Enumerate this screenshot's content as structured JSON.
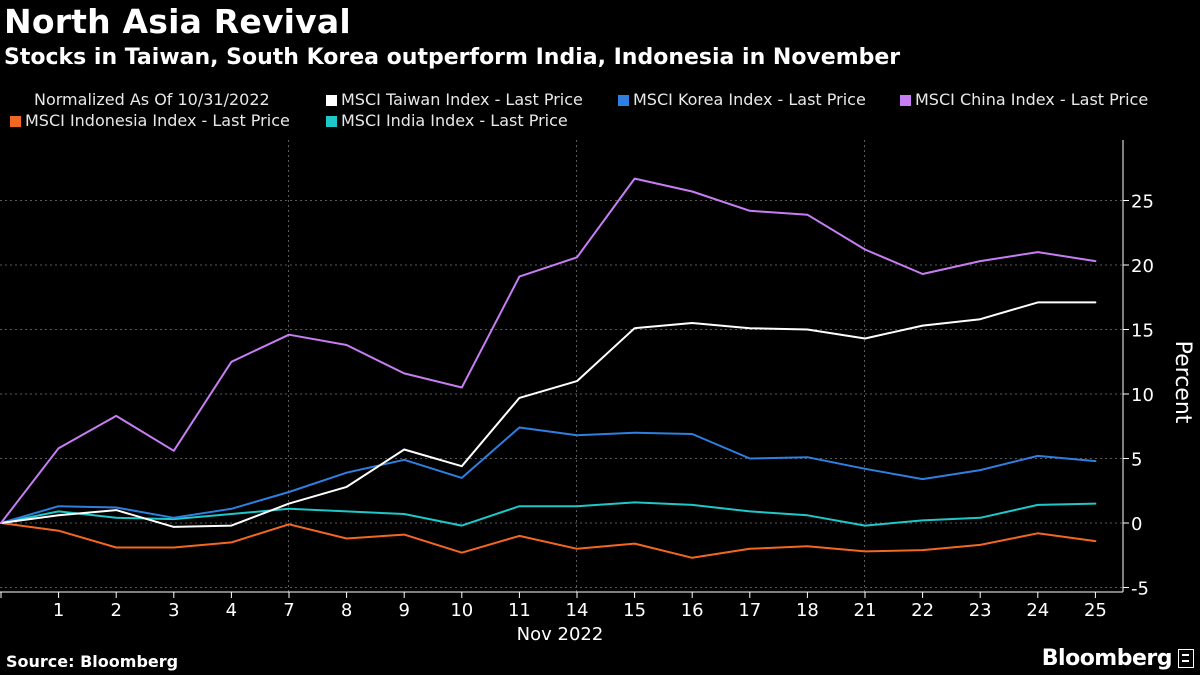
{
  "header": {
    "title": "North Asia Revival",
    "subtitle": "Stocks in Taiwan, South Korea outperform India, Indonesia in November"
  },
  "legend": {
    "note": "Normalized As Of 10/31/2022"
  },
  "footer": {
    "source": "Source: Bloomberg",
    "brand": "Bloomberg"
  },
  "chart_data": {
    "type": "line",
    "title": "North Asia Revival",
    "subtitle": "Stocks in Taiwan, South Korea outperform India, Indonesia in November",
    "x": [
      "",
      "1",
      "2",
      "3",
      "4",
      "7",
      "8",
      "9",
      "10",
      "11",
      "14",
      "15",
      "16",
      "17",
      "18",
      "21",
      "22",
      "23",
      "24",
      "25"
    ],
    "x_tick_labels": [
      "1",
      "2",
      "3",
      "4",
      "7",
      "8",
      "9",
      "10",
      "11",
      "14",
      "15",
      "16",
      "17",
      "18",
      "21",
      "22",
      "23",
      "24",
      "25"
    ],
    "xlabel": "Nov 2022",
    "ylabel": "Percent",
    "ylim": [
      -5.5,
      29
    ],
    "y_ticks": [
      -5,
      0,
      5,
      10,
      15,
      20,
      25
    ],
    "y_axis_side": "right",
    "grid": true,
    "legend_position": "top",
    "series": [
      {
        "name": "MSCI Taiwan Index - Last Price",
        "color": "#ffffff",
        "values": [
          0,
          0.6,
          1.0,
          -0.3,
          -0.2,
          1.5,
          2.8,
          5.7,
          4.4,
          9.7,
          11.0,
          15.1,
          15.5,
          15.1,
          15.0,
          14.3,
          15.3,
          15.8,
          17.1,
          17.1
        ]
      },
      {
        "name": "MSCI Korea Index - Last Price",
        "color": "#2f7fe0",
        "values": [
          0,
          1.3,
          1.2,
          0.4,
          1.1,
          2.4,
          3.9,
          4.9,
          3.5,
          7.4,
          6.8,
          7.0,
          6.9,
          5.0,
          5.1,
          4.2,
          3.4,
          4.1,
          5.2,
          4.8
        ]
      },
      {
        "name": "MSCI China Index - Last Price",
        "color": "#c77df3",
        "values": [
          0,
          5.8,
          8.3,
          5.6,
          12.5,
          14.6,
          13.8,
          11.6,
          10.5,
          19.1,
          20.6,
          26.7,
          25.7,
          24.2,
          23.9,
          21.2,
          19.3,
          20.3,
          21.0,
          20.3
        ]
      },
      {
        "name": "MSCI Indonesia Index - Last Price",
        "color": "#f26722",
        "values": [
          0,
          -0.6,
          -1.9,
          -1.9,
          -1.5,
          -0.1,
          -1.2,
          -0.9,
          -2.3,
          -1.0,
          -2.0,
          -1.6,
          -2.7,
          -2.0,
          -1.8,
          -2.2,
          -2.1,
          -1.7,
          -0.8,
          -1.4
        ]
      },
      {
        "name": "MSCI India Index - Last Price",
        "color": "#1ec8c8",
        "values": [
          0,
          0.9,
          0.4,
          0.3,
          0.7,
          1.1,
          0.9,
          0.7,
          -0.2,
          1.3,
          1.3,
          1.6,
          1.4,
          0.9,
          0.6,
          -0.2,
          0.2,
          0.4,
          1.4,
          1.5
        ]
      }
    ]
  }
}
